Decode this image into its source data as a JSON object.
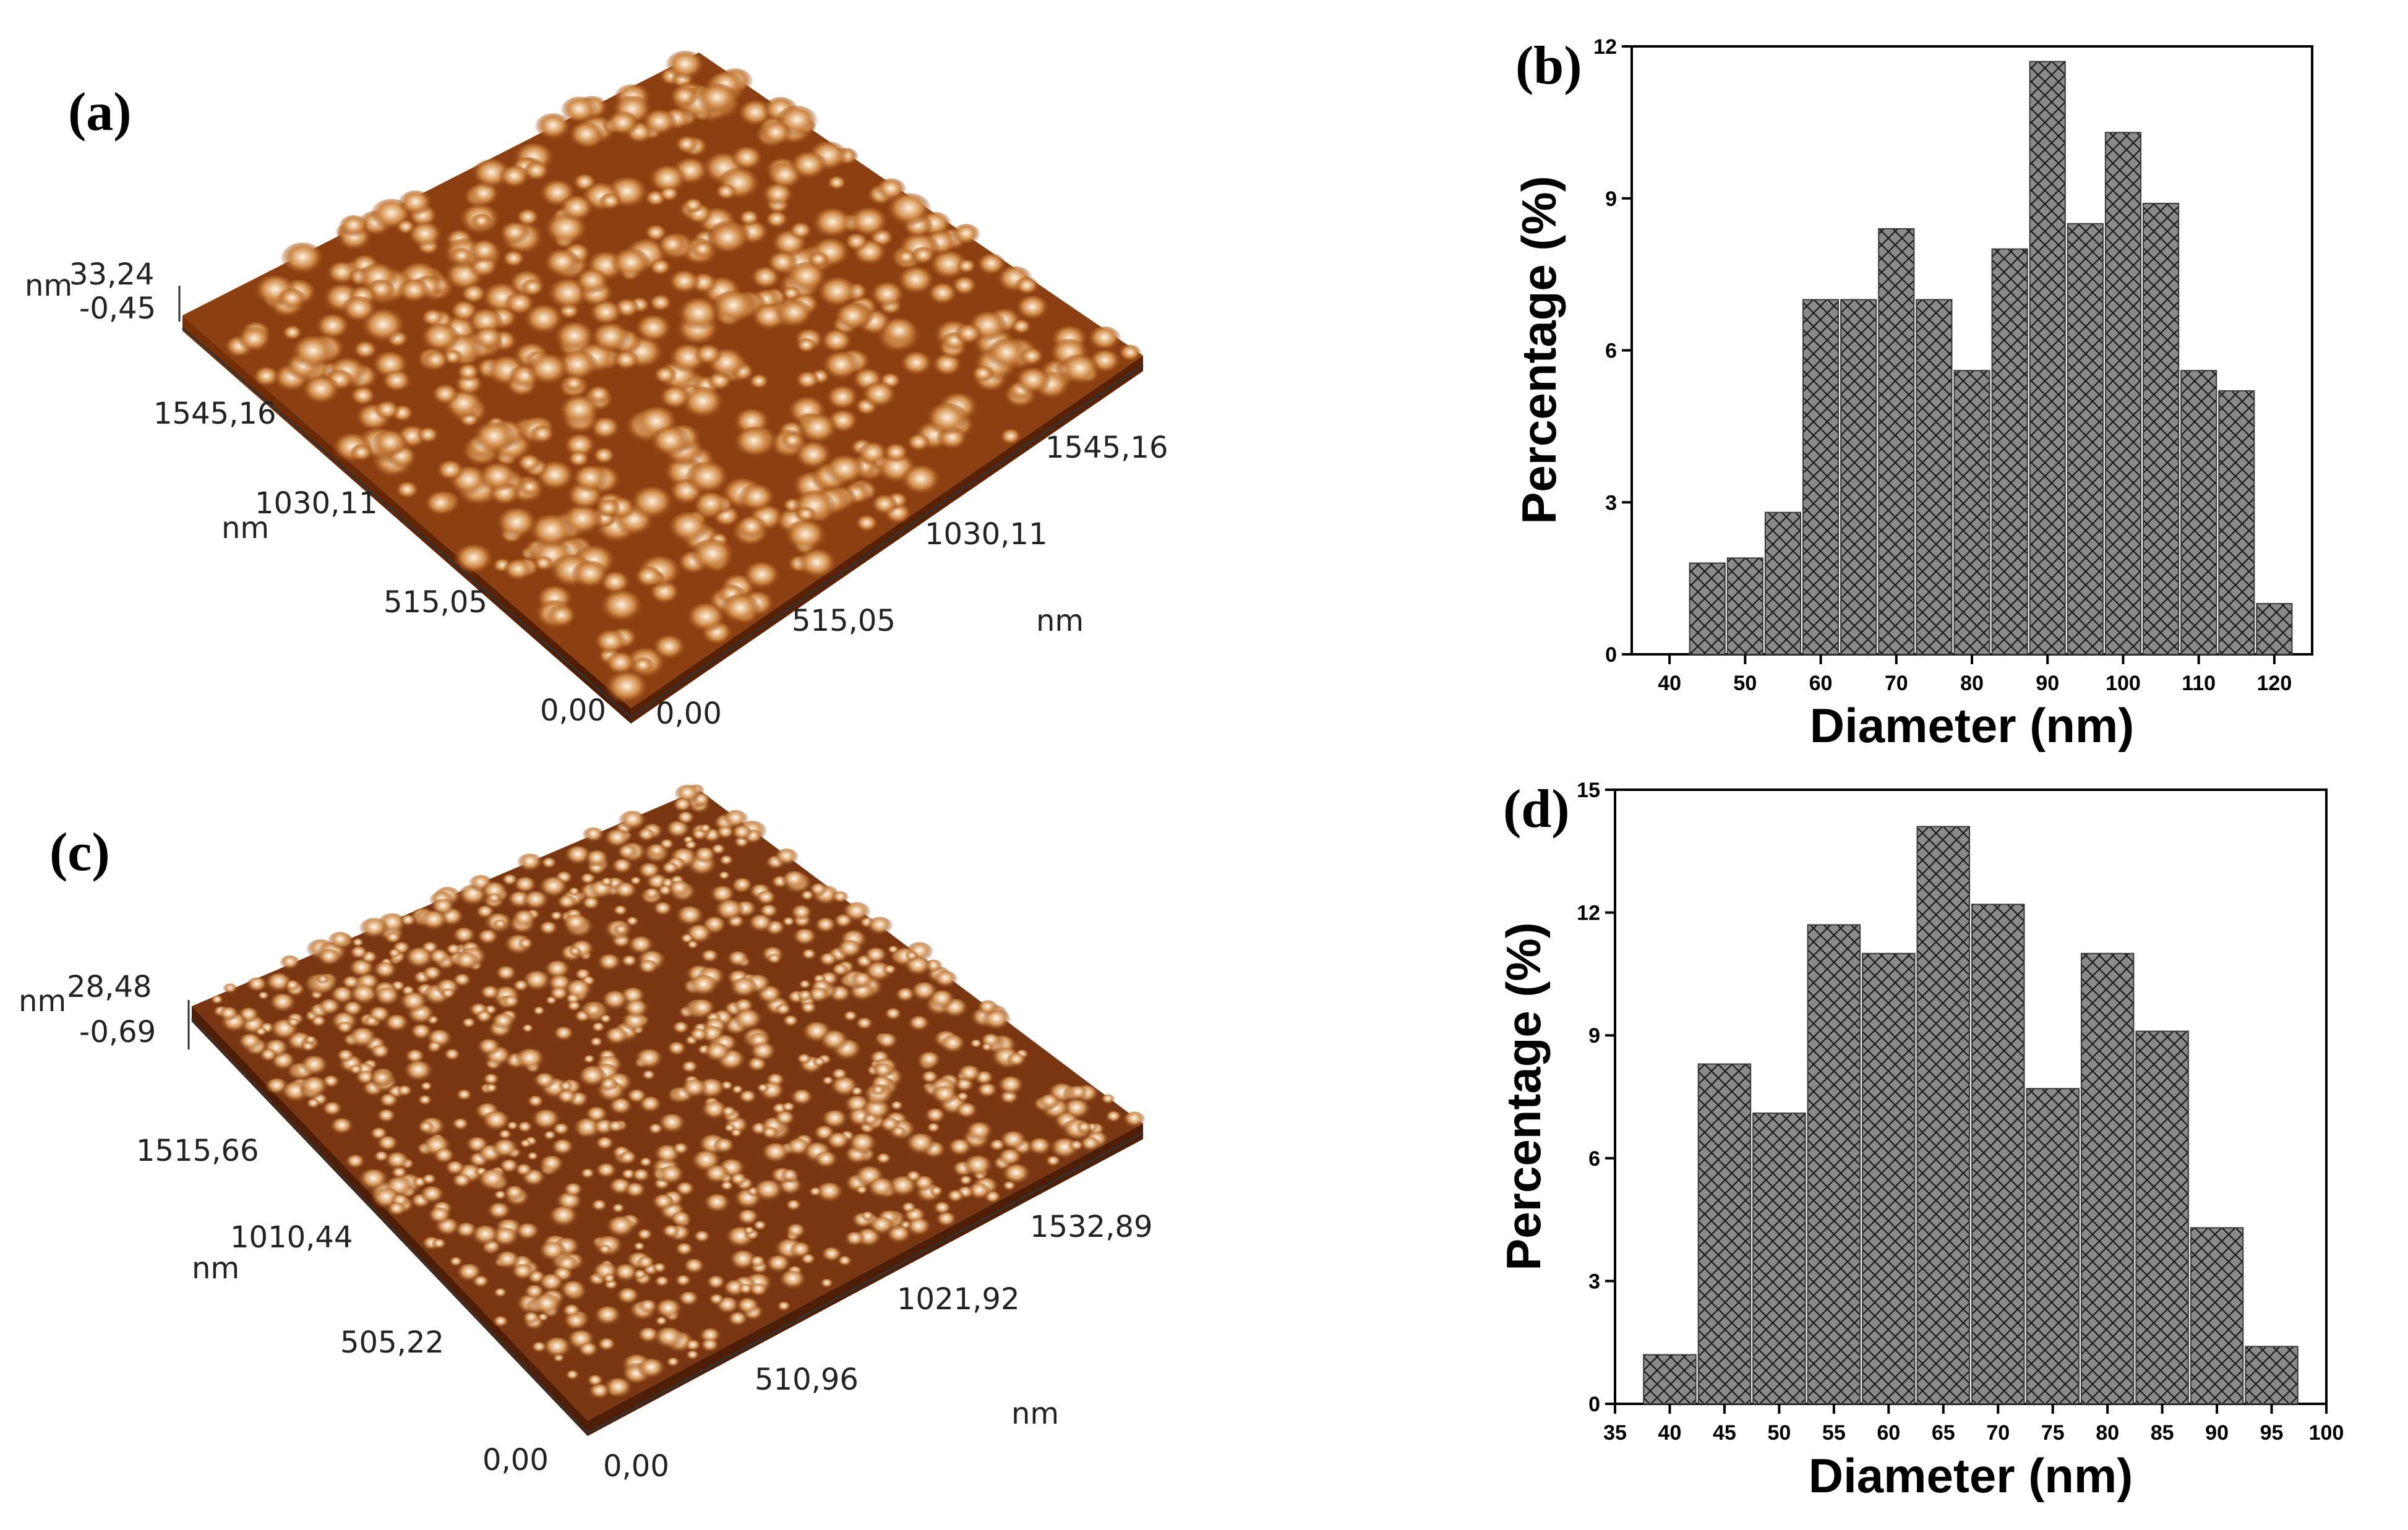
{
  "afm_panels": [
    {
      "label": "(a)",
      "z_unit": "nm",
      "z_max": "33,24",
      "z_min": "-0,45",
      "left_ticks": [
        "1545,16",
        "1030,11",
        "515,05"
      ],
      "left_unit": "nm",
      "right_ticks": [
        "1545,16",
        "1030,11",
        "515,05"
      ],
      "right_unit": "nm",
      "origin_left": "0,00",
      "origin_right": "0,00",
      "colors": {
        "dark": "#6b2a05",
        "mid": "#b5651d",
        "light": "#f3d6b0"
      }
    },
    {
      "label": "(c)",
      "z_unit": "nm",
      "z_max": "28,48",
      "z_min": "-0,69",
      "left_ticks": [
        "1515,66",
        "1010,44",
        "505,22"
      ],
      "left_unit": "nm",
      "right_ticks": [
        "1532,89",
        "1021,92",
        "510,96"
      ],
      "right_unit": "nm",
      "origin_left": "0,00",
      "origin_right": "0,00",
      "colors": {
        "dark": "#5e2a08",
        "mid": "#b06a2a",
        "light": "#f6e4cf"
      }
    }
  ],
  "chart_data": [
    {
      "type": "bar",
      "panel_label": "(b)",
      "title": "",
      "xlabel": "Diameter (nm)",
      "ylabel": "Percentage (%)",
      "xlim": [
        35,
        125
      ],
      "ylim": [
        0,
        12
      ],
      "xticks": [
        40,
        50,
        60,
        70,
        80,
        90,
        100,
        110,
        120
      ],
      "yticks": [
        0,
        3,
        6,
        9,
        12
      ],
      "bin_width": 5,
      "x": [
        45,
        50,
        55,
        60,
        65,
        70,
        75,
        80,
        85,
        90,
        95,
        100,
        105,
        110,
        115,
        120
      ],
      "values": [
        1.8,
        1.9,
        2.8,
        7.0,
        7.0,
        8.4,
        7.0,
        5.6,
        8.0,
        11.7,
        8.5,
        10.3,
        8.9,
        5.6,
        5.2,
        1.0
      ],
      "fill": "#8a8a8a",
      "hatch": "crosshatch"
    },
    {
      "type": "bar",
      "panel_label": "(d)",
      "title": "",
      "xlabel": "Diameter (nm)",
      "ylabel": "Percentage (%)",
      "xlim": [
        35,
        100
      ],
      "ylim": [
        0,
        15
      ],
      "xticks": [
        35,
        40,
        45,
        50,
        55,
        60,
        65,
        70,
        75,
        80,
        85,
        90,
        95,
        100
      ],
      "yticks": [
        0,
        3,
        6,
        9,
        12,
        15
      ],
      "bin_width": 5,
      "x": [
        40,
        45,
        50,
        55,
        60,
        65,
        70,
        75,
        80,
        85,
        90,
        95
      ],
      "values": [
        1.2,
        8.3,
        7.1,
        11.7,
        11.0,
        14.1,
        12.2,
        7.7,
        11.0,
        9.1,
        4.3,
        1.4
      ],
      "fill": "#8a8a8a",
      "hatch": "crosshatch"
    }
  ]
}
